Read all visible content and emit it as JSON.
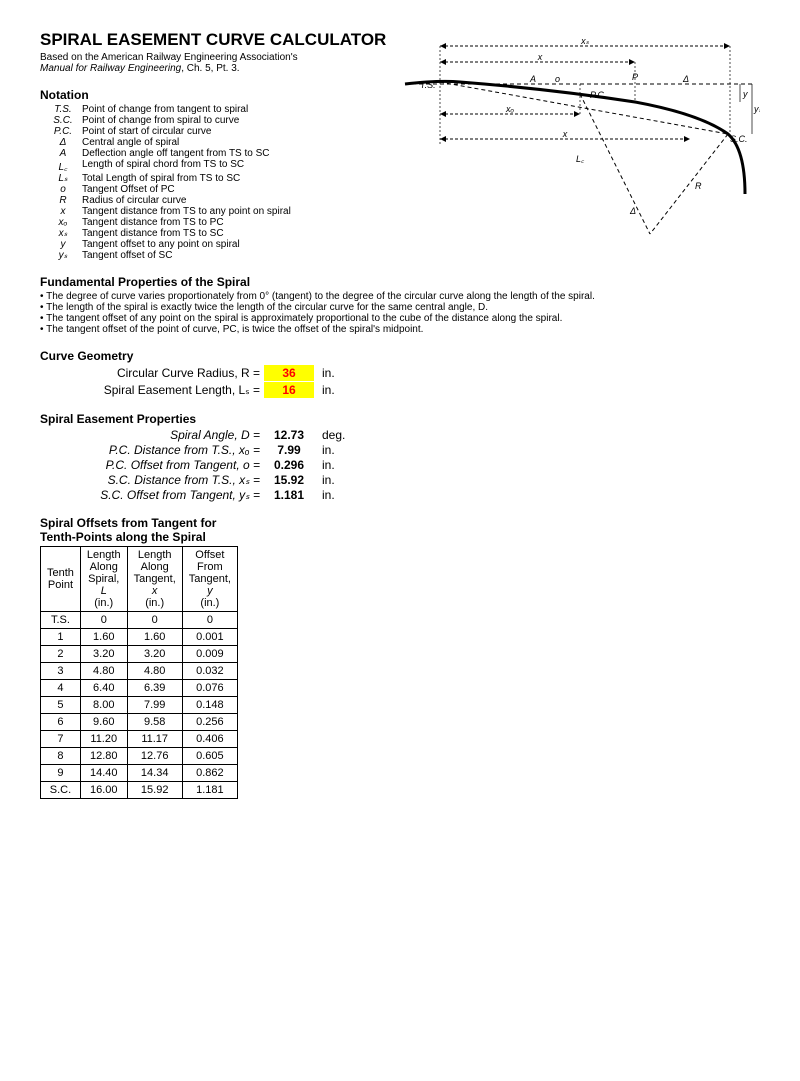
{
  "title": "SPIRAL EASEMENT CURVE CALCULATOR",
  "subtitle_prefix": "Based on the American Railway Engineering Association's",
  "subtitle_italic": "Manual for Railway Engineering",
  "subtitle_suffix": ", Ch. 5, Pt. 3.",
  "notation_heading": "Notation",
  "notation": [
    {
      "sym": "T.S.",
      "desc": "Point of change from tangent to spiral"
    },
    {
      "sym": "S.C.",
      "desc": "Point of change from spiral to curve"
    },
    {
      "sym": "P.C.",
      "desc": "Point of start of circular curve"
    },
    {
      "sym": "Δ",
      "desc": "Central angle of spiral"
    },
    {
      "sym": "A",
      "desc": "Deflection angle off tangent from TS to SC"
    },
    {
      "sym": "L꜀",
      "desc": "Length of spiral chord from TS to SC"
    },
    {
      "sym": "Lₛ",
      "desc": "Total Length of spiral from TS to SC"
    },
    {
      "sym": "o",
      "desc": "Tangent Offset of PC"
    },
    {
      "sym": "R",
      "desc": "Radius of circular curve"
    },
    {
      "sym": "x",
      "desc": "Tangent distance from TS to any point on spiral"
    },
    {
      "sym": "xₒ",
      "desc": "Tangent distance from TS to PC"
    },
    {
      "sym": "xₛ",
      "desc": "Tangent distance from TS to SC"
    },
    {
      "sym": "y",
      "desc": "Tangent offset to any point on spiral"
    },
    {
      "sym": "yₛ",
      "desc": "Tangent offset of SC"
    }
  ],
  "fund_heading": "Fundamental Properties of the Spiral",
  "fund": [
    "The degree of curve varies proportionately from 0° (tangent) to the degree of the circular curve along the length of the spiral.",
    "The length of the spiral is exactly twice the length of the circular curve for the same central angle, D.",
    "The tangent offset of any point on the spiral is approximately proportional to the cube of the distance along the spiral.",
    "The tangent offset of the point of curve, PC, is twice the offset of the spiral's midpoint."
  ],
  "geom_heading": "Curve Geometry",
  "geom": [
    {
      "label": "Circular Curve Radius, R =",
      "value": "36",
      "unit": "in."
    },
    {
      "label": "Spiral Easement Length, Lₛ =",
      "value": "16",
      "unit": "in."
    }
  ],
  "prop_heading": "Spiral Easement Properties",
  "props": [
    {
      "label": "Spiral Angle, D =",
      "value": "12.73",
      "unit": "deg."
    },
    {
      "label": "P.C. Distance from T.S., xₒ =",
      "value": "7.99",
      "unit": "in."
    },
    {
      "label": "P.C. Offset from Tangent, o =",
      "value": "0.296",
      "unit": "in."
    },
    {
      "label": "S.C. Distance from T.S., xₛ =",
      "value": "15.92",
      "unit": "in."
    },
    {
      "label": "S.C. Offset from Tangent, yₛ =",
      "value": "1.181",
      "unit": "in."
    }
  ],
  "offsets_heading1": "Spiral Offsets from Tangent for",
  "offsets_heading2": "Tenth-Points along the Spiral",
  "offsets_headers": [
    "Tenth Point",
    "Length Along Spiral, L (in.)",
    "Length Along Tangent, x (in.)",
    "Offset From Tangent, y (in.)"
  ],
  "offsets_rows": [
    [
      "T.S.",
      "0",
      "0",
      "0"
    ],
    [
      "1",
      "1.60",
      "1.60",
      "0.001"
    ],
    [
      "2",
      "3.20",
      "3.20",
      "0.009"
    ],
    [
      "3",
      "4.80",
      "4.80",
      "0.032"
    ],
    [
      "4",
      "6.40",
      "6.39",
      "0.076"
    ],
    [
      "5",
      "8.00",
      "7.99",
      "0.148"
    ],
    [
      "6",
      "9.60",
      "9.58",
      "0.256"
    ],
    [
      "7",
      "11.20",
      "11.17",
      "0.406"
    ],
    [
      "8",
      "12.80",
      "12.76",
      "0.605"
    ],
    [
      "9",
      "14.40",
      "14.34",
      "0.862"
    ],
    [
      "S.C.",
      "16.00",
      "15.92",
      "1.181"
    ]
  ],
  "diagram_labels": {
    "xs": "xₛ",
    "x": "x",
    "ts": "T.S.",
    "a": "A",
    "o": "o",
    "p": "P",
    "pc": "P.C.",
    "d": "Δ",
    "xo": "xₒ",
    "x2": "x",
    "ys": "yₛ",
    "sc": "S.C.",
    "lc": "L꜀",
    "r": "R",
    "delta": "Δ",
    "y": "y"
  }
}
